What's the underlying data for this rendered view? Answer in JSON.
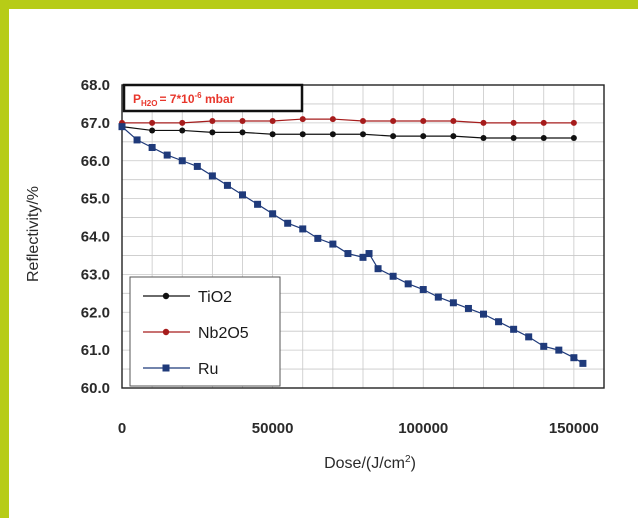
{
  "chart_data": {
    "type": "line",
    "title": "",
    "xlabel": "Dose/(J/cm²)",
    "ylabel": "Reflectivity/%",
    "xlim": [
      0,
      160000
    ],
    "ylim": [
      60.0,
      68.0
    ],
    "x_ticks": [
      "0",
      "50000",
      "100000",
      "150000"
    ],
    "x_tick_values": [
      0,
      50000,
      100000,
      150000
    ],
    "y_ticks": [
      "60.0",
      "61.0",
      "62.0",
      "63.0",
      "64.0",
      "65.0",
      "66.0",
      "67.0",
      "68.0"
    ],
    "y_tick_values": [
      60,
      61,
      62,
      63,
      64,
      65,
      66,
      67,
      68
    ],
    "grid": true,
    "legend_position": "bottom-left",
    "annotation": {
      "prefix": "P",
      "subscript": "H2O",
      "text": "=  7*10",
      "superscript": "-6",
      "suffix": " mbar"
    },
    "series": [
      {
        "name": "TiO2",
        "color": "#111111",
        "marker": "circle",
        "x": [
          0,
          10000,
          20000,
          30000,
          40000,
          50000,
          60000,
          70000,
          80000,
          90000,
          100000,
          110000,
          120000,
          130000,
          140000,
          150000
        ],
        "values": [
          66.9,
          66.8,
          66.8,
          66.75,
          66.75,
          66.7,
          66.7,
          66.7,
          66.7,
          66.65,
          66.65,
          66.65,
          66.6,
          66.6,
          66.6,
          66.6
        ]
      },
      {
        "name": "Nb2O5",
        "color": "#a61c1c",
        "marker": "circle",
        "x": [
          0,
          10000,
          20000,
          30000,
          40000,
          50000,
          60000,
          70000,
          80000,
          90000,
          100000,
          110000,
          120000,
          130000,
          140000,
          150000
        ],
        "values": [
          67.0,
          67.0,
          67.0,
          67.05,
          67.05,
          67.05,
          67.1,
          67.1,
          67.05,
          67.05,
          67.05,
          67.05,
          67.0,
          67.0,
          67.0,
          67.0
        ]
      },
      {
        "name": "Ru",
        "color": "#1f3a7a",
        "marker": "square",
        "x": [
          0,
          5000,
          10000,
          15000,
          20000,
          25000,
          30000,
          35000,
          40000,
          45000,
          50000,
          55000,
          60000,
          65000,
          70000,
          75000,
          80000,
          82000,
          85000,
          90000,
          95000,
          100000,
          105000,
          110000,
          115000,
          120000,
          125000,
          130000,
          135000,
          140000,
          145000,
          150000,
          153000
        ],
        "values": [
          66.9,
          66.55,
          66.35,
          66.15,
          66.0,
          65.85,
          65.6,
          65.35,
          65.1,
          64.85,
          64.6,
          64.35,
          64.2,
          63.95,
          63.8,
          63.55,
          63.45,
          63.55,
          63.15,
          62.95,
          62.75,
          62.6,
          62.4,
          62.25,
          62.1,
          61.95,
          61.75,
          61.55,
          61.35,
          61.1,
          61.0,
          60.8,
          60.65
        ]
      }
    ]
  }
}
